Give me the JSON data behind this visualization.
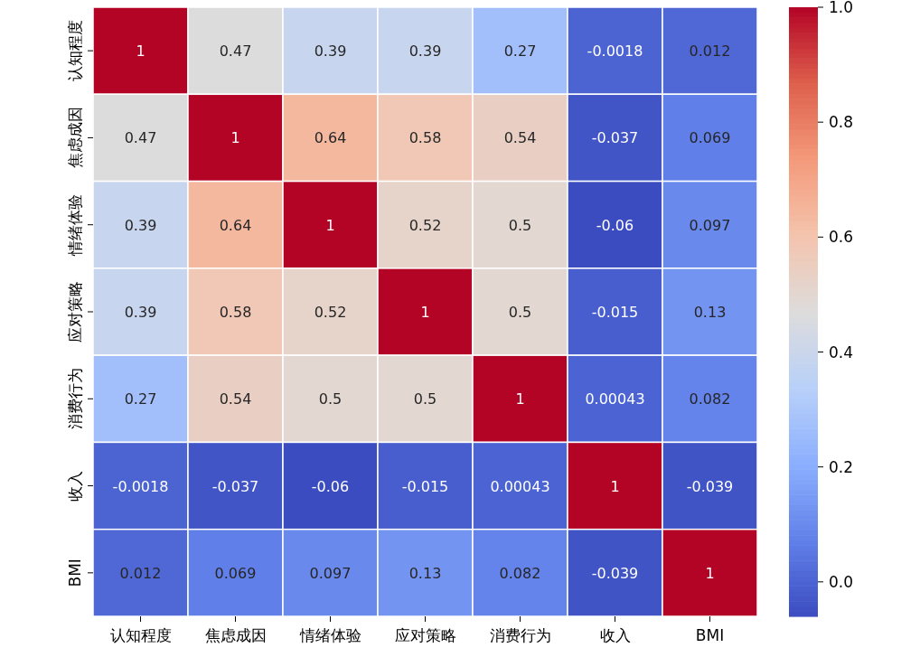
{
  "chart_data": {
    "type": "heatmap",
    "categories": [
      "认知程度",
      "焦虑成因",
      "情绪体验",
      "应对策略",
      "消费行为",
      "收入",
      "BMI"
    ],
    "y_categories": [
      "认知程度",
      "焦虑成因",
      "情绪体验",
      "应对策略",
      "消费行为",
      "收入",
      "BMI"
    ],
    "cells": [
      [
        1,
        0.47,
        0.39,
        0.39,
        0.27,
        -0.0018,
        0.012
      ],
      [
        0.47,
        1,
        0.64,
        0.58,
        0.54,
        -0.037,
        0.069
      ],
      [
        0.39,
        0.64,
        1,
        0.52,
        0.5,
        -0.06,
        0.097
      ],
      [
        0.39,
        0.58,
        0.52,
        1,
        0.5,
        -0.015,
        0.13
      ],
      [
        0.27,
        0.54,
        0.5,
        0.5,
        1,
        0.00043,
        0.082
      ],
      [
        -0.0018,
        -0.037,
        -0.06,
        -0.015,
        0.00043,
        1,
        -0.039
      ],
      [
        0.012,
        0.069,
        0.097,
        0.13,
        0.082,
        -0.039,
        1
      ]
    ],
    "clim": [
      -0.06,
      1.0
    ],
    "cticks": [
      {
        "value": 0,
        "label": "0.0"
      },
      {
        "value": 0.2,
        "label": "0.2"
      },
      {
        "value": 0.4,
        "label": "0.4"
      },
      {
        "value": 0.6,
        "label": "0.6"
      },
      {
        "value": 0.8,
        "label": "0.8"
      },
      {
        "value": 1,
        "label": "1.0"
      }
    ],
    "data_labels": true
  }
}
